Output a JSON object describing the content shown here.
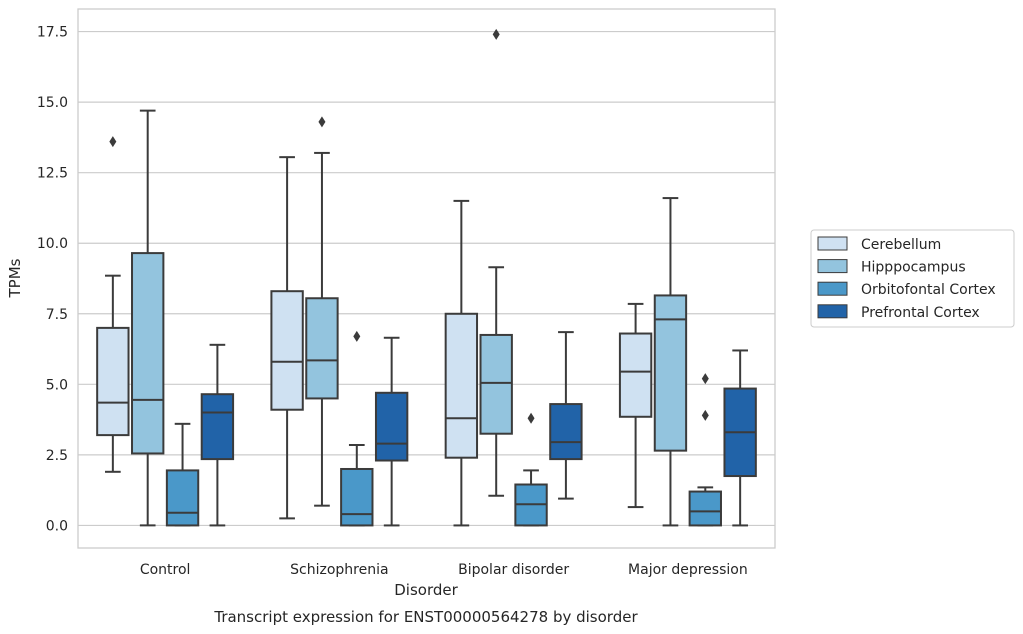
{
  "chart_data": {
    "type": "box",
    "title": "",
    "caption": "Transcript expression for ENST00000564278 by disorder",
    "xlabel": "Disorder",
    "ylabel": "TPMs",
    "ylim": [
      -0.8,
      18.3
    ],
    "yticks": [
      "0.0",
      "2.5",
      "5.0",
      "7.5",
      "10.0",
      "12.5",
      "15.0",
      "17.5"
    ],
    "ytick_values": [
      0,
      2.5,
      5,
      7.5,
      10,
      12.5,
      15,
      17.5
    ],
    "grid": "horizontal",
    "legend_position": "right",
    "categories": [
      "Control",
      "Schizophrenia",
      "Bipolar disorder",
      "Major depression"
    ],
    "series": [
      {
        "name": "Cerebellum",
        "color": "#cfe1f2",
        "boxes": [
          {
            "whisker_low": 1.9,
            "q1": 3.2,
            "median": 4.35,
            "q3": 7.0,
            "whisker_high": 8.85,
            "outliers": [
              13.6
            ]
          },
          {
            "whisker_low": 0.25,
            "q1": 4.1,
            "median": 5.8,
            "q3": 8.3,
            "whisker_high": 13.05,
            "outliers": []
          },
          {
            "whisker_low": 0.0,
            "q1": 2.4,
            "median": 3.8,
            "q3": 7.5,
            "whisker_high": 11.5,
            "outliers": []
          },
          {
            "whisker_low": 0.65,
            "q1": 3.85,
            "median": 5.45,
            "q3": 6.8,
            "whisker_high": 7.85,
            "outliers": []
          }
        ]
      },
      {
        "name": "Hipppocampus",
        "color": "#93c4de",
        "boxes": [
          {
            "whisker_low": 0.0,
            "q1": 2.55,
            "median": 4.45,
            "q3": 9.65,
            "whisker_high": 14.7,
            "outliers": []
          },
          {
            "whisker_low": 0.7,
            "q1": 4.5,
            "median": 5.85,
            "q3": 8.05,
            "whisker_high": 13.2,
            "outliers": [
              14.3
            ]
          },
          {
            "whisker_low": 1.05,
            "q1": 3.25,
            "median": 5.05,
            "q3": 6.75,
            "whisker_high": 9.15,
            "outliers": [
              17.4
            ]
          },
          {
            "whisker_low": 0.0,
            "q1": 2.65,
            "median": 7.3,
            "q3": 8.15,
            "whisker_high": 11.6,
            "outliers": []
          }
        ]
      },
      {
        "name": "Orbitofontal Cortex",
        "color": "#4a98c9",
        "boxes": [
          {
            "whisker_low": 0.0,
            "q1": 0.0,
            "median": 0.45,
            "q3": 1.95,
            "whisker_high": 3.6,
            "outliers": []
          },
          {
            "whisker_low": 0.0,
            "q1": 0.0,
            "median": 0.4,
            "q3": 2.0,
            "whisker_high": 2.85,
            "outliers": [
              6.7
            ]
          },
          {
            "whisker_low": 0.0,
            "q1": 0.0,
            "median": 0.75,
            "q3": 1.45,
            "whisker_high": 1.95,
            "outliers": [
              3.8
            ]
          },
          {
            "whisker_low": 0.0,
            "q1": 0.0,
            "median": 0.5,
            "q3": 1.2,
            "whisker_high": 1.35,
            "outliers": [
              3.9,
              5.2
            ]
          }
        ]
      },
      {
        "name": "Prefrontal Cortex",
        "color": "#2163a8",
        "boxes": [
          {
            "whisker_low": 0.0,
            "q1": 2.35,
            "median": 4.0,
            "q3": 4.65,
            "whisker_high": 6.4,
            "outliers": []
          },
          {
            "whisker_low": 0.0,
            "q1": 2.3,
            "median": 2.9,
            "q3": 4.7,
            "whisker_high": 6.65,
            "outliers": []
          },
          {
            "whisker_low": 0.95,
            "q1": 2.35,
            "median": 2.95,
            "q3": 4.3,
            "whisker_high": 6.85,
            "outliers": []
          },
          {
            "whisker_low": 0.0,
            "q1": 1.75,
            "median": 3.3,
            "q3": 4.85,
            "whisker_high": 6.2,
            "outliers": []
          }
        ]
      }
    ]
  }
}
